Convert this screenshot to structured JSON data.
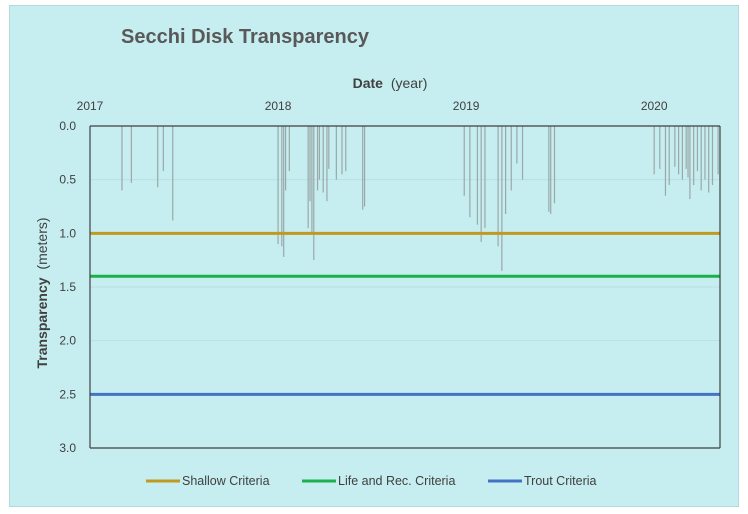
{
  "chart_data": {
    "type": "bar",
    "title": "Secchi Disk Transparency",
    "xlabel_main": "Date",
    "xlabel_unit": "(year)",
    "ylabel_main": "Transparency",
    "ylabel_unit": "(meters)",
    "x_axis_position": "top",
    "y_inverted": true,
    "ylim": [
      0,
      3.0
    ],
    "yticks": [
      "0.0",
      "0.5",
      "1.0",
      "1.5",
      "2.0",
      "2.5",
      "3.0"
    ],
    "xlim": [
      2017,
      2020.35
    ],
    "xticks": [
      "2017",
      "2018",
      "2019",
      "2020"
    ],
    "grid": "horizontal",
    "legend_position": "bottom",
    "series": [
      {
        "name": "Transparency",
        "type": "bar",
        "color": "#9aa8a8",
        "points": [
          {
            "x": 2017.17,
            "y": 0.6
          },
          {
            "x": 2017.22,
            "y": 0.53
          },
          {
            "x": 2017.36,
            "y": 0.57
          },
          {
            "x": 2017.39,
            "y": 0.42
          },
          {
            "x": 2017.44,
            "y": 0.88
          },
          {
            "x": 2018.0,
            "y": 1.1
          },
          {
            "x": 2018.02,
            "y": 1.12
          },
          {
            "x": 2018.03,
            "y": 1.22
          },
          {
            "x": 2018.04,
            "y": 0.6
          },
          {
            "x": 2018.06,
            "y": 0.42
          },
          {
            "x": 2018.16,
            "y": 0.95
          },
          {
            "x": 2018.17,
            "y": 0.7
          },
          {
            "x": 2018.18,
            "y": 1.0
          },
          {
            "x": 2018.19,
            "y": 1.25
          },
          {
            "x": 2018.21,
            "y": 0.6
          },
          {
            "x": 2018.22,
            "y": 0.5
          },
          {
            "x": 2018.24,
            "y": 0.62
          },
          {
            "x": 2018.26,
            "y": 0.7
          },
          {
            "x": 2018.27,
            "y": 0.4
          },
          {
            "x": 2018.31,
            "y": 0.5
          },
          {
            "x": 2018.34,
            "y": 0.45
          },
          {
            "x": 2018.36,
            "y": 0.42
          },
          {
            "x": 2018.45,
            "y": 0.78
          },
          {
            "x": 2018.46,
            "y": 0.75
          },
          {
            "x": 2018.99,
            "y": 0.65
          },
          {
            "x": 2019.02,
            "y": 0.85
          },
          {
            "x": 2019.06,
            "y": 0.92
          },
          {
            "x": 2019.08,
            "y": 1.08
          },
          {
            "x": 2019.1,
            "y": 0.95
          },
          {
            "x": 2019.17,
            "y": 1.12
          },
          {
            "x": 2019.19,
            "y": 1.35
          },
          {
            "x": 2019.21,
            "y": 0.82
          },
          {
            "x": 2019.24,
            "y": 0.6
          },
          {
            "x": 2019.27,
            "y": 0.35
          },
          {
            "x": 2019.3,
            "y": 0.5
          },
          {
            "x": 2019.44,
            "y": 0.8
          },
          {
            "x": 2019.45,
            "y": 0.82
          },
          {
            "x": 2019.47,
            "y": 0.72
          },
          {
            "x": 2020.0,
            "y": 0.45
          },
          {
            "x": 2020.03,
            "y": 0.4
          },
          {
            "x": 2020.06,
            "y": 0.65
          },
          {
            "x": 2020.08,
            "y": 0.55
          },
          {
            "x": 2020.11,
            "y": 0.38
          },
          {
            "x": 2020.13,
            "y": 0.45
          },
          {
            "x": 2020.15,
            "y": 0.5
          },
          {
            "x": 2020.17,
            "y": 0.4
          },
          {
            "x": 2020.18,
            "y": 0.48
          },
          {
            "x": 2020.19,
            "y": 0.68
          },
          {
            "x": 2020.21,
            "y": 0.55
          },
          {
            "x": 2020.23,
            "y": 0.42
          },
          {
            "x": 2020.25,
            "y": 0.6
          },
          {
            "x": 2020.27,
            "y": 0.5
          },
          {
            "x": 2020.29,
            "y": 0.62
          },
          {
            "x": 2020.31,
            "y": 0.55
          },
          {
            "x": 2020.34,
            "y": 0.45
          }
        ]
      },
      {
        "name": "Shallow Criteria",
        "type": "hline",
        "y": 1.0,
        "color": "#c09a1e"
      },
      {
        "name": "Life and Rec. Criteria",
        "type": "hline",
        "y": 1.4,
        "color": "#1cb04c"
      },
      {
        "name": "Trout Criteria",
        "type": "hline",
        "y": 2.5,
        "color": "#4472c4"
      }
    ],
    "colors": {
      "plot_background": "#c6edf0",
      "gridline": "#b9dfe2",
      "axis_line": "#404040"
    }
  }
}
